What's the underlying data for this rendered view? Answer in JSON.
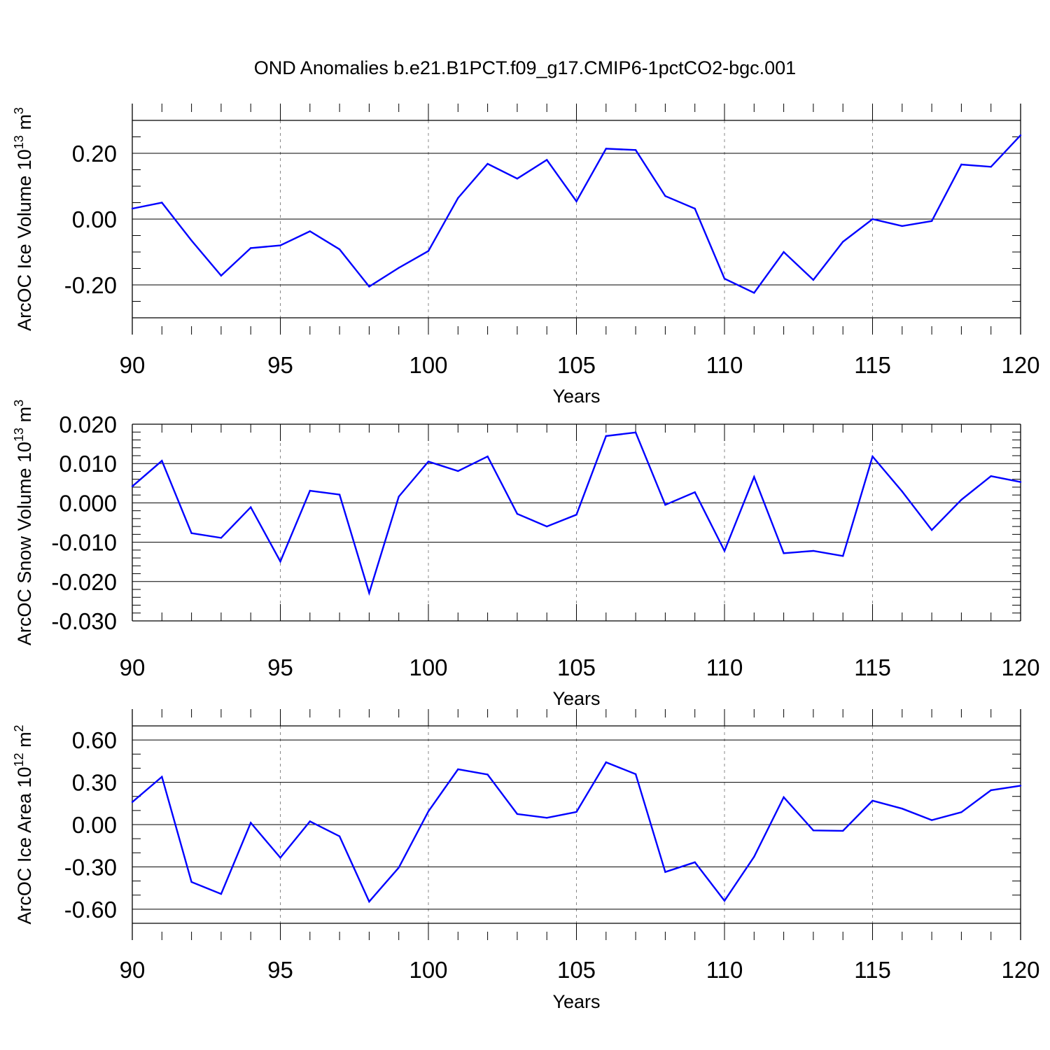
{
  "figure": {
    "title": "OND Anomalies b.e21.B1PCT.f09_g17.CMIP6-1pctCO2-bgc.001"
  },
  "chart_data": [
    {
      "type": "line",
      "title": "",
      "xlabel": "Years",
      "ylabel": {
        "prefix": "ArcOC Ice Volume 10",
        "exp": "13",
        "unit": " m",
        "unit_exp": "3"
      },
      "xlim": [
        90,
        120
      ],
      "ylim": [
        -0.3,
        0.3
      ],
      "xticks": [
        90,
        95,
        100,
        105,
        110,
        115,
        120
      ],
      "xtick_labels": [
        "90",
        "95",
        "100",
        "105",
        "110",
        "115",
        "120"
      ],
      "yticks": [
        -0.2,
        0.0,
        0.2
      ],
      "ytick_labels": [
        "-0.20",
        "0.00",
        "0.20"
      ],
      "y_minor_step": 0.05,
      "color": "#0000ff",
      "series": [
        {
          "name": "ArcOC Ice Volume",
          "x": [
            90,
            91,
            92,
            93,
            94,
            95,
            96,
            97,
            98,
            99,
            100,
            101,
            102,
            103,
            104,
            105,
            106,
            107,
            108,
            109,
            110,
            111,
            112,
            113,
            114,
            115,
            116,
            117,
            118,
            119,
            120
          ],
          "values": [
            0.032,
            0.05,
            -0.065,
            -0.172,
            -0.088,
            -0.08,
            -0.037,
            -0.092,
            -0.205,
            -0.148,
            -0.097,
            0.064,
            0.168,
            0.123,
            0.18,
            0.054,
            0.214,
            0.21,
            0.07,
            0.032,
            -0.181,
            -0.224,
            -0.1,
            -0.185,
            -0.069,
            0.0,
            -0.021,
            -0.006,
            0.166,
            0.159,
            0.255
          ]
        }
      ]
    },
    {
      "type": "line",
      "title": "",
      "xlabel": "Years",
      "ylabel": {
        "prefix": "ArcOC Snow Volume 10",
        "exp": "13",
        "unit": " m",
        "unit_exp": "3"
      },
      "xlim": [
        90,
        120
      ],
      "ylim": [
        -0.03,
        0.02
      ],
      "xticks": [
        90,
        95,
        100,
        105,
        110,
        115,
        120
      ],
      "xtick_labels": [
        "90",
        "95",
        "100",
        "105",
        "110",
        "115",
        "120"
      ],
      "yticks": [
        -0.03,
        -0.02,
        -0.01,
        0.0,
        0.01,
        0.02
      ],
      "ytick_labels": [
        "-0.030",
        "-0.020",
        "-0.010",
        "0.000",
        "0.010",
        "0.020"
      ],
      "y_minor_step": 0.002,
      "color": "#0000ff",
      "series": [
        {
          "name": "ArcOC Snow Volume",
          "x": [
            90,
            91,
            92,
            93,
            94,
            95,
            96,
            97,
            98,
            99,
            100,
            101,
            102,
            103,
            104,
            105,
            106,
            107,
            108,
            109,
            110,
            111,
            112,
            113,
            114,
            115,
            116,
            117,
            118,
            119,
            120
          ],
          "values": [
            0.0042,
            0.0107,
            -0.0077,
            -0.0089,
            -0.0011,
            -0.0149,
            0.0031,
            0.0021,
            -0.0229,
            0.0016,
            0.0105,
            0.0081,
            0.0118,
            -0.0028,
            -0.006,
            -0.003,
            0.017,
            0.0179,
            -0.0005,
            0.0027,
            -0.0122,
            0.0066,
            -0.0128,
            -0.0122,
            -0.0135,
            0.0118,
            0.0029,
            -0.0069,
            0.0008,
            0.0068,
            0.0053
          ]
        }
      ]
    },
    {
      "type": "line",
      "title": "",
      "xlabel": "Years",
      "ylabel": {
        "prefix": "ArcOC Ice Area 10",
        "exp": "12",
        "unit": " m",
        "unit_exp": "2"
      },
      "xlim": [
        90,
        120
      ],
      "ylim": [
        -0.7,
        0.7
      ],
      "xticks": [
        90,
        95,
        100,
        105,
        110,
        115,
        120
      ],
      "xtick_labels": [
        "90",
        "95",
        "100",
        "105",
        "110",
        "115",
        "120"
      ],
      "yticks": [
        -0.6,
        -0.3,
        0.0,
        0.3,
        0.6
      ],
      "ytick_labels": [
        "-0.60",
        "-0.30",
        "0.00",
        "0.30",
        "0.60"
      ],
      "y_minor_step": 0.1,
      "color": "#0000ff",
      "series": [
        {
          "name": "ArcOC Ice Area",
          "x": [
            90,
            91,
            92,
            93,
            94,
            95,
            96,
            97,
            98,
            99,
            100,
            101,
            102,
            103,
            104,
            105,
            106,
            107,
            108,
            109,
            110,
            111,
            112,
            113,
            114,
            115,
            116,
            117,
            118,
            119,
            120
          ],
          "values": [
            0.16,
            0.339,
            -0.407,
            -0.492,
            0.013,
            -0.235,
            0.023,
            -0.083,
            -0.546,
            -0.305,
            0.094,
            0.392,
            0.355,
            0.075,
            0.048,
            0.09,
            0.442,
            0.358,
            -0.336,
            -0.267,
            -0.54,
            -0.228,
            0.194,
            -0.041,
            -0.044,
            0.17,
            0.113,
            0.032,
            0.088,
            0.244,
            0.276
          ]
        }
      ]
    }
  ]
}
